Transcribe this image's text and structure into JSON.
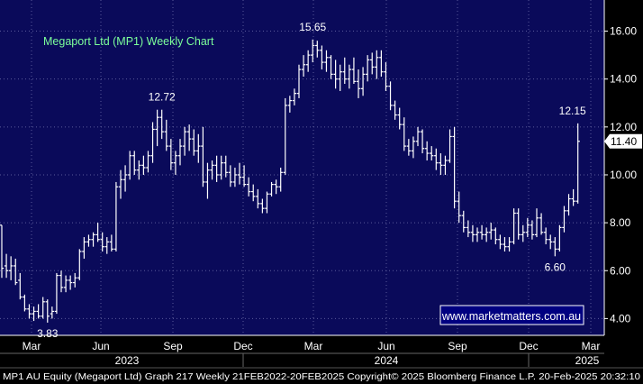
{
  "colors": {
    "plot_background": "#0A0A5A",
    "price_bars": "#FFFFFF",
    "grid": "#5A5A9A",
    "title": "#7CFF9A",
    "last_price_box": "#FFFFFF",
    "watermark_box": "#000080"
  },
  "chart_data": {
    "type": "ohlc",
    "title": "Megaport Ltd (MP1) Weekly Chart",
    "watermark": "www.marketmatters.com.au",
    "y_axis": {
      "position": "right",
      "ylim": [
        3.3,
        17.3
      ],
      "ticks": [
        "4.00",
        "6.00",
        "8.00",
        "10.00",
        "12.00",
        "14.00",
        "16.00"
      ],
      "grid": "dotted"
    },
    "x_axis": {
      "month_labels": [
        "Mar",
        "Jun",
        "Sep",
        "Dec",
        "Mar",
        "Jun",
        "Sep",
        "Dec",
        "Mar"
      ],
      "year_labels": [
        "2023",
        "2024",
        "2025"
      ]
    },
    "last_price": "11.40",
    "annotations": [
      {
        "text": "3.83",
        "x_index": 10
      },
      {
        "text": "12.72",
        "x_index": 35
      },
      {
        "text": "15.65",
        "x_index": 68
      },
      {
        "text": "6.60",
        "x_index": 121
      },
      {
        "text": "12.15",
        "x_index": 126
      }
    ],
    "x_range": [
      0,
      130
    ],
    "ohlc": [
      [
        7.9,
        7.9,
        5.7,
        6.1
      ],
      [
        6.2,
        6.7,
        5.7,
        6.0
      ],
      [
        6.0,
        6.6,
        5.6,
        6.2
      ],
      [
        6.2,
        6.5,
        5.4,
        5.5
      ],
      [
        5.6,
        5.9,
        4.8,
        4.9
      ],
      [
        4.9,
        5.0,
        4.3,
        4.4
      ],
      [
        4.4,
        4.6,
        4.0,
        4.2
      ],
      [
        4.2,
        4.5,
        3.9,
        4.3
      ],
      [
        4.3,
        4.6,
        4.0,
        4.1
      ],
      [
        4.1,
        4.9,
        4.0,
        4.7
      ],
      [
        4.7,
        4.8,
        3.83,
        4.1
      ],
      [
        4.2,
        4.5,
        4.0,
        4.3
      ],
      [
        4.3,
        5.9,
        4.2,
        5.8
      ],
      [
        5.8,
        6.0,
        5.1,
        5.3
      ],
      [
        5.3,
        5.8,
        5.1,
        5.6
      ],
      [
        5.6,
        5.8,
        5.2,
        5.5
      ],
      [
        5.5,
        5.9,
        5.3,
        5.7
      ],
      [
        5.7,
        6.9,
        5.6,
        6.8
      ],
      [
        6.8,
        7.4,
        6.5,
        7.2
      ],
      [
        7.2,
        7.5,
        7.0,
        7.3
      ],
      [
        7.3,
        7.6,
        7.0,
        7.5
      ],
      [
        7.5,
        8.0,
        7.2,
        7.3
      ],
      [
        7.3,
        7.6,
        6.8,
        7.0
      ],
      [
        7.0,
        7.4,
        6.7,
        7.2
      ],
      [
        7.2,
        7.5,
        6.8,
        6.9
      ],
      [
        6.9,
        9.7,
        6.8,
        9.5
      ],
      [
        9.5,
        10.2,
        9.0,
        9.8
      ],
      [
        9.8,
        10.4,
        9.3,
        10.0
      ],
      [
        10.0,
        11.0,
        9.8,
        10.8
      ],
      [
        10.8,
        11.0,
        10.0,
        10.2
      ],
      [
        10.2,
        10.6,
        9.8,
        10.4
      ],
      [
        10.4,
        10.8,
        10.0,
        10.3
      ],
      [
        10.3,
        11.0,
        10.1,
        10.8
      ],
      [
        10.8,
        12.2,
        10.5,
        11.9
      ],
      [
        11.9,
        12.72,
        11.2,
        12.4
      ],
      [
        12.4,
        12.72,
        11.5,
        11.8
      ],
      [
        11.8,
        12.3,
        11.0,
        11.2
      ],
      [
        11.2,
        11.5,
        10.2,
        10.5
      ],
      [
        10.5,
        11.0,
        10.0,
        10.8
      ],
      [
        10.8,
        11.5,
        10.4,
        11.2
      ],
      [
        11.2,
        12.0,
        10.8,
        11.8
      ],
      [
        11.8,
        12.1,
        11.0,
        11.5
      ],
      [
        11.5,
        11.9,
        10.8,
        11.0
      ],
      [
        11.0,
        11.7,
        10.5,
        11.2
      ],
      [
        11.2,
        12.0,
        9.5,
        9.7
      ],
      [
        9.7,
        10.5,
        9.0,
        10.2
      ],
      [
        10.2,
        10.6,
        9.8,
        10.4
      ],
      [
        10.4,
        10.8,
        9.7,
        10.0
      ],
      [
        10.0,
        10.8,
        9.8,
        10.5
      ],
      [
        10.5,
        10.8,
        9.9,
        10.1
      ],
      [
        10.1,
        10.4,
        9.5,
        9.7
      ],
      [
        9.7,
        10.3,
        9.5,
        10.0
      ],
      [
        10.0,
        10.5,
        9.6,
        9.9
      ],
      [
        9.9,
        10.4,
        9.5,
        9.6
      ],
      [
        9.6,
        9.9,
        9.1,
        9.3
      ],
      [
        9.3,
        9.6,
        8.9,
        9.1
      ],
      [
        9.1,
        9.4,
        8.6,
        8.8
      ],
      [
        8.8,
        9.0,
        8.4,
        8.6
      ],
      [
        8.6,
        9.3,
        8.4,
        9.2
      ],
      [
        9.2,
        9.7,
        9.1,
        9.6
      ],
      [
        9.6,
        9.8,
        9.2,
        9.5
      ],
      [
        9.5,
        10.3,
        9.3,
        10.1
      ],
      [
        10.1,
        13.2,
        10.0,
        12.9
      ],
      [
        12.9,
        13.3,
        12.6,
        13.1
      ],
      [
        13.1,
        13.6,
        12.9,
        13.4
      ],
      [
        13.4,
        14.6,
        13.2,
        14.4
      ],
      [
        14.4,
        15.0,
        14.1,
        14.6
      ],
      [
        14.6,
        15.2,
        14.3,
        15.0
      ],
      [
        15.0,
        15.65,
        14.7,
        15.4
      ],
      [
        15.4,
        15.6,
        14.9,
        15.2
      ],
      [
        15.2,
        15.4,
        14.4,
        14.7
      ],
      [
        14.7,
        15.2,
        14.3,
        14.9
      ],
      [
        14.9,
        15.0,
        14.0,
        14.2
      ],
      [
        14.2,
        14.8,
        13.6,
        14.0
      ],
      [
        14.0,
        14.6,
        13.5,
        14.3
      ],
      [
        14.3,
        14.9,
        13.8,
        14.0
      ],
      [
        14.0,
        14.6,
        13.6,
        14.4
      ],
      [
        14.4,
        14.9,
        13.8,
        13.9
      ],
      [
        13.9,
        14.4,
        13.2,
        13.6
      ],
      [
        13.6,
        14.5,
        13.3,
        14.2
      ],
      [
        14.2,
        15.0,
        13.9,
        14.8
      ],
      [
        14.8,
        15.1,
        14.2,
        14.5
      ],
      [
        14.5,
        15.2,
        14.0,
        14.9
      ],
      [
        14.9,
        15.2,
        14.1,
        14.3
      ],
      [
        14.3,
        14.7,
        13.5,
        13.7
      ],
      [
        13.7,
        13.9,
        12.7,
        12.9
      ],
      [
        12.9,
        13.1,
        12.3,
        12.5
      ],
      [
        12.5,
        12.8,
        11.9,
        12.1
      ],
      [
        12.1,
        12.4,
        11.0,
        11.2
      ],
      [
        11.2,
        11.5,
        10.8,
        11.0
      ],
      [
        11.0,
        11.6,
        10.7,
        11.4
      ],
      [
        11.4,
        12.0,
        11.2,
        11.8
      ],
      [
        11.8,
        11.9,
        10.9,
        11.1
      ],
      [
        11.1,
        11.4,
        10.6,
        10.9
      ],
      [
        10.9,
        11.2,
        10.6,
        10.8
      ],
      [
        10.8,
        11.1,
        10.2,
        10.5
      ],
      [
        10.5,
        10.9,
        10.0,
        10.4
      ],
      [
        10.4,
        10.8,
        10.0,
        10.6
      ],
      [
        10.6,
        11.9,
        10.5,
        11.6
      ],
      [
        11.6,
        12.0,
        8.6,
        8.9
      ],
      [
        8.9,
        9.3,
        8.0,
        8.3
      ],
      [
        8.3,
        8.5,
        7.6,
        7.8
      ],
      [
        7.8,
        8.1,
        7.4,
        7.6
      ],
      [
        7.6,
        7.9,
        7.2,
        7.5
      ],
      [
        7.5,
        7.8,
        7.2,
        7.6
      ],
      [
        7.6,
        7.9,
        7.3,
        7.5
      ],
      [
        7.5,
        7.8,
        7.2,
        7.6
      ],
      [
        7.6,
        8.0,
        7.3,
        7.7
      ],
      [
        7.7,
        7.8,
        7.1,
        7.3
      ],
      [
        7.3,
        7.5,
        6.9,
        7.1
      ],
      [
        7.1,
        7.4,
        6.8,
        7.0
      ],
      [
        7.0,
        7.4,
        6.8,
        7.2
      ],
      [
        7.2,
        8.6,
        7.1,
        8.4
      ],
      [
        8.4,
        8.6,
        7.3,
        7.5
      ],
      [
        7.5,
        7.9,
        7.2,
        7.6
      ],
      [
        7.6,
        8.2,
        7.4,
        7.9
      ],
      [
        7.9,
        8.1,
        7.3,
        7.5
      ],
      [
        7.5,
        8.6,
        7.4,
        8.2
      ],
      [
        8.2,
        8.4,
        7.5,
        7.6
      ],
      [
        7.6,
        7.8,
        7.1,
        7.3
      ],
      [
        7.3,
        7.5,
        6.9,
        7.2
      ],
      [
        7.2,
        7.4,
        6.6,
        6.9
      ],
      [
        6.9,
        7.9,
        6.8,
        7.8
      ],
      [
        7.8,
        8.7,
        7.6,
        8.5
      ],
      [
        8.5,
        9.2,
        8.3,
        9.0
      ],
      [
        9.0,
        9.4,
        8.7,
        8.9
      ],
      [
        8.9,
        12.15,
        8.8,
        11.4
      ]
    ]
  },
  "footer": {
    "text": "MP1 AU Equity (Megaport Ltd) Graph 217  Weekly 21FEB2022-20FEB2025 Copyright© 2025 Bloomberg Finance L.P.  20-Feb-2025 20:32:10"
  }
}
